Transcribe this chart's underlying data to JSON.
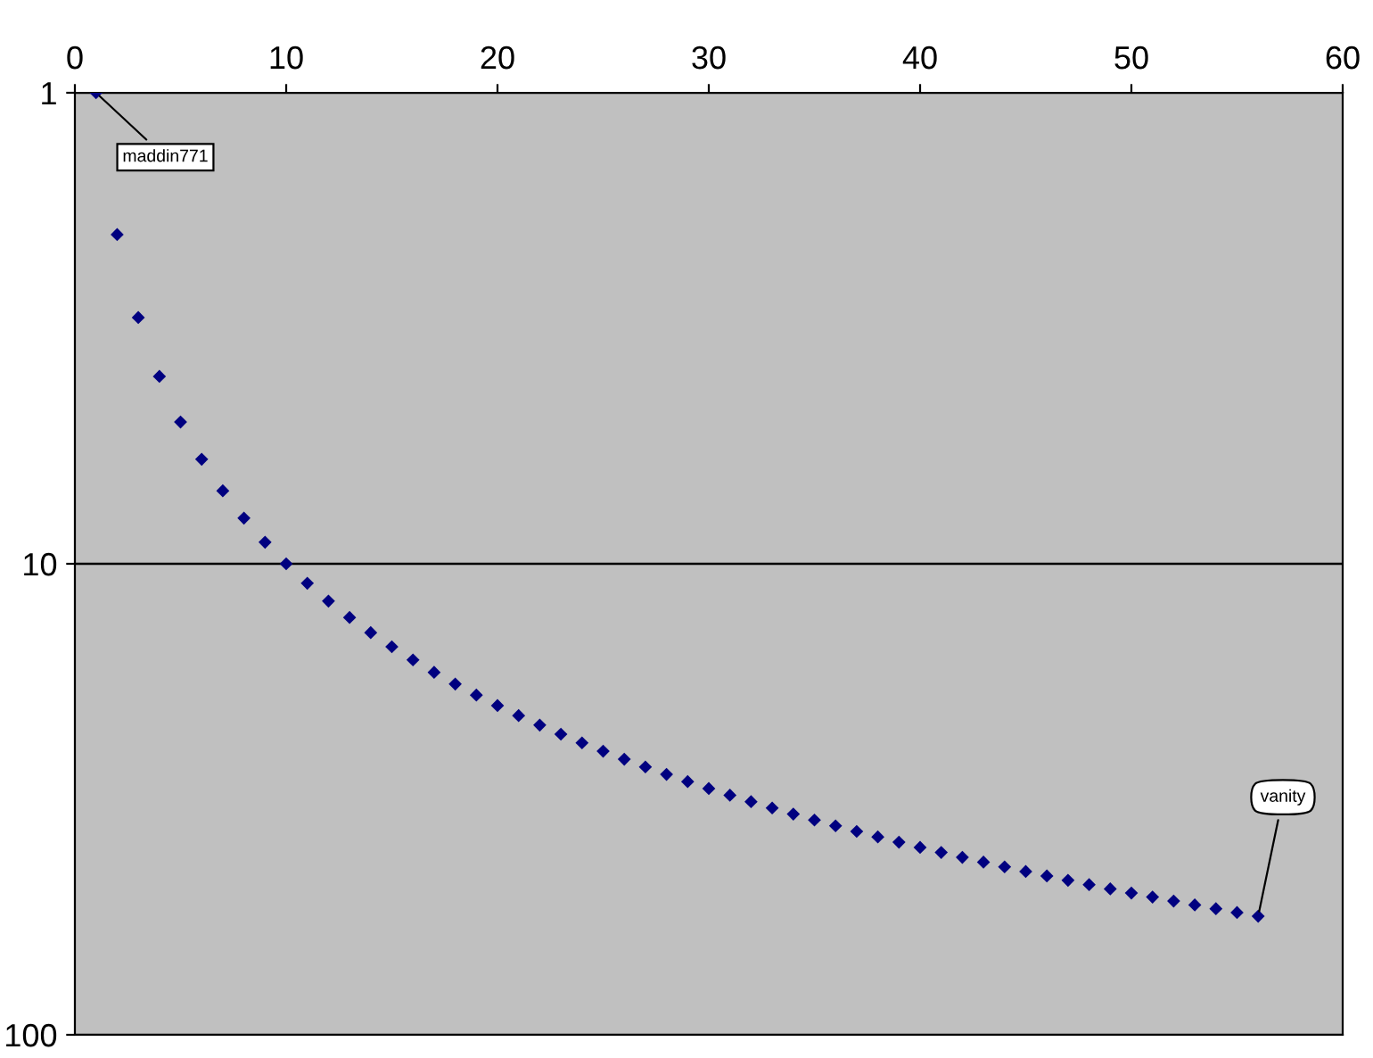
{
  "chart_data": {
    "type": "scatter",
    "x": [
      1,
      2,
      3,
      4,
      5,
      6,
      7,
      8,
      9,
      10,
      11,
      12,
      13,
      14,
      15,
      16,
      17,
      18,
      19,
      20,
      21,
      22,
      23,
      24,
      25,
      26,
      27,
      28,
      29,
      30,
      31,
      32,
      33,
      34,
      35,
      36,
      37,
      38,
      39,
      40,
      41,
      42,
      43,
      44,
      45,
      46,
      47,
      48,
      49,
      50,
      51,
      52,
      53,
      54,
      55,
      56
    ],
    "series": [
      {
        "color": "#000080",
        "values": [
          1,
          2,
          3,
          4,
          5,
          6,
          7,
          8,
          9,
          10,
          11,
          12,
          13,
          14,
          15,
          16,
          17,
          18,
          19,
          20,
          21,
          22,
          23,
          24,
          25,
          26,
          27,
          28,
          29,
          30,
          31,
          32,
          33,
          34,
          35,
          36,
          37,
          38,
          39,
          40,
          41,
          42,
          43,
          44,
          45,
          46,
          47,
          48,
          49,
          50,
          51,
          52,
          53,
          54,
          55,
          56
        ]
      }
    ],
    "marker": "diamond",
    "log": "y",
    "grid": "y",
    "xlim": [
      0,
      60
    ],
    "xticks": [
      0,
      10,
      20,
      30,
      40,
      50,
      60
    ],
    "ylim": [
      100,
      1
    ],
    "yticks": [
      1,
      10,
      100
    ],
    "annotations": [
      {
        "text": "maddin771",
        "x": 1,
        "y": 1
      },
      {
        "text": "vanity",
        "x": 56,
        "y": 56
      }
    ]
  }
}
